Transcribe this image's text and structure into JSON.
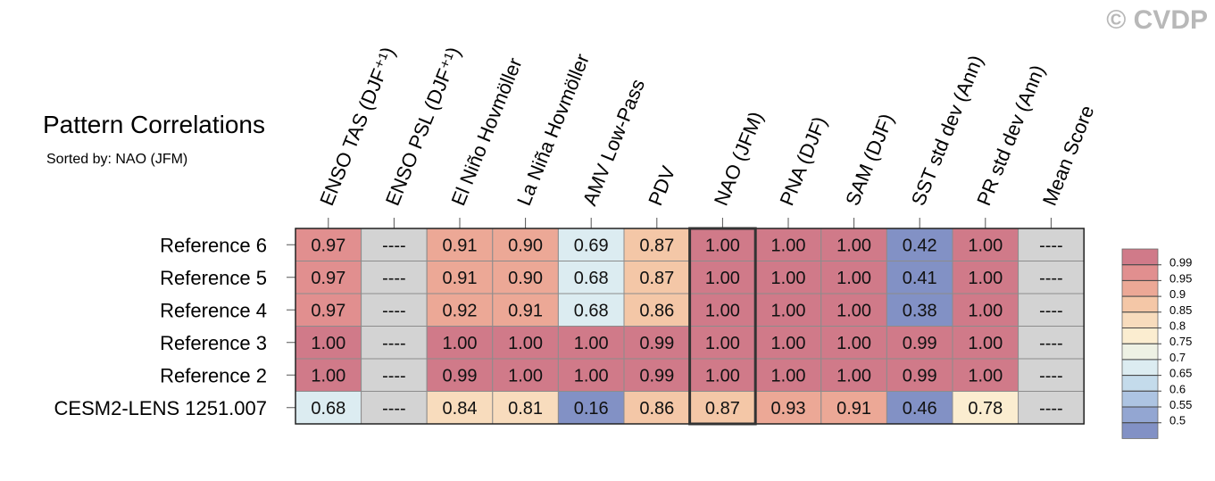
{
  "copyright": "© CVDP",
  "title": "Pattern Correlations",
  "subtitle": "Sorted by: NAO (JFM)",
  "chart_data": {
    "type": "heatmap",
    "columns": [
      "ENSO TAS (DJF⁺¹)",
      "ENSO PSL (DJF⁺¹)",
      "El Niño Hovmöller",
      "La Niña Hovmöller",
      "AMV Low-Pass",
      "PDV",
      "NAO (JFM)",
      "PNA (DJF)",
      "SAM (DJF)",
      "SST std dev (Ann)",
      "PR std dev (Ann)",
      "Mean Score"
    ],
    "rows": [
      "Reference 6",
      "Reference 5",
      "Reference 4",
      "Reference 3",
      "Reference 2",
      "CESM2-LENS 1251.007"
    ],
    "values": [
      [
        0.97,
        null,
        0.91,
        0.9,
        0.69,
        0.87,
        1.0,
        1.0,
        1.0,
        0.42,
        1.0,
        null
      ],
      [
        0.97,
        null,
        0.91,
        0.9,
        0.68,
        0.87,
        1.0,
        1.0,
        1.0,
        0.41,
        1.0,
        null
      ],
      [
        0.97,
        null,
        0.92,
        0.91,
        0.68,
        0.86,
        1.0,
        1.0,
        1.0,
        0.38,
        1.0,
        null
      ],
      [
        1.0,
        null,
        1.0,
        1.0,
        1.0,
        0.99,
        1.0,
        1.0,
        1.0,
        0.99,
        1.0,
        null
      ],
      [
        1.0,
        null,
        0.99,
        1.0,
        1.0,
        0.99,
        1.0,
        1.0,
        1.0,
        0.99,
        1.0,
        null
      ],
      [
        0.68,
        null,
        0.84,
        0.81,
        0.16,
        0.86,
        0.87,
        0.93,
        0.91,
        0.46,
        0.78,
        null
      ]
    ],
    "missing_label": "----",
    "sorted_column": "NAO (JFM)",
    "colorbar": {
      "levels": [
        "0.99",
        "0.95",
        "0.9",
        "0.85",
        "0.8",
        "0.75",
        "0.7",
        "0.65",
        "0.6",
        "0.55",
        "0.5"
      ],
      "colors": [
        "#d07a89",
        "#e18f8f",
        "#eca896",
        "#f4c7a7",
        "#f8dcbd",
        "#fbedd0",
        "#eef1e4",
        "#dcecf1",
        "#c4dbeb",
        "#adc4e2",
        "#93a6d2",
        "#8291c5"
      ]
    },
    "missing_color": "#d3d3d3",
    "highlight_color": "#333333"
  }
}
